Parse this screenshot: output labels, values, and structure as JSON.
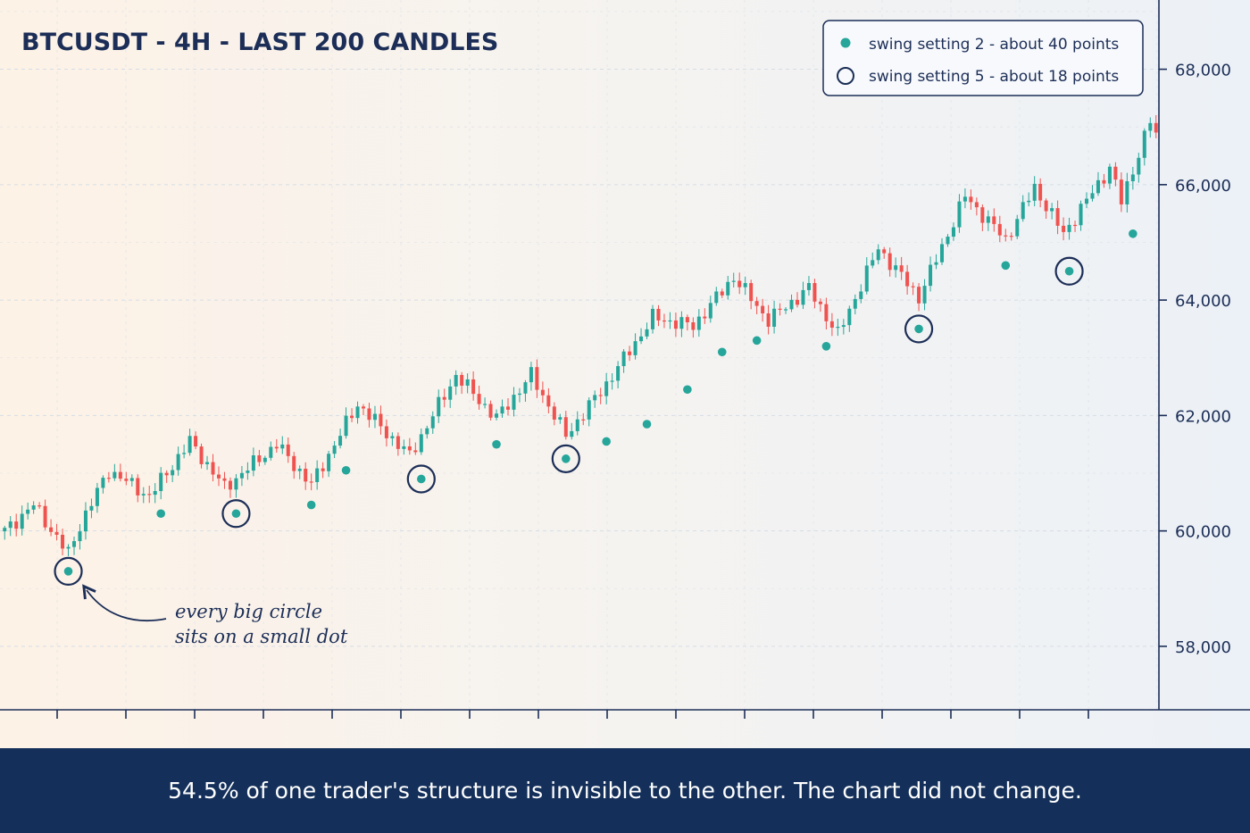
{
  "caption": "54.5% of one trader's structure is invisible to the other. The chart did not change.",
  "annotation": {
    "line1": "every big circle",
    "line2": "sits on a small dot"
  },
  "colors": {
    "up": "#26a69a",
    "down": "#ef5350",
    "navy": "#1c2e57",
    "footer_bg": "#14305a",
    "grid": "#d5dde6"
  },
  "chart_data": {
    "type": "candlestick",
    "title": "BTCUSDT - 4H - LAST 200 CANDLES",
    "xlabel": "",
    "ylabel": "",
    "ylim": [
      56900,
      69200
    ],
    "y_ticks": [
      58000,
      60000,
      62000,
      64000,
      66000,
      68000
    ],
    "y_tick_labels": [
      "58,000",
      "60,000",
      "62,000",
      "64,000",
      "66,000",
      "68,000"
    ],
    "grid": true,
    "legend_position": "top-right",
    "candle_count": 200,
    "close_anchors": [
      [
        0,
        60000
      ],
      [
        5,
        60450
      ],
      [
        11,
        59600
      ],
      [
        13,
        60100
      ],
      [
        18,
        61050
      ],
      [
        25,
        60600
      ],
      [
        32,
        61550
      ],
      [
        38,
        60750
      ],
      [
        47,
        61500
      ],
      [
        53,
        60800
      ],
      [
        61,
        62200
      ],
      [
        70,
        61300
      ],
      [
        78,
        62700
      ],
      [
        85,
        61950
      ],
      [
        91,
        62700
      ],
      [
        97,
        61650
      ],
      [
        104,
        62550
      ],
      [
        112,
        63700
      ],
      [
        119,
        63550
      ],
      [
        126,
        64400
      ],
      [
        132,
        63650
      ],
      [
        139,
        64200
      ],
      [
        144,
        63400
      ],
      [
        151,
        64900
      ],
      [
        158,
        64050
      ],
      [
        166,
        65800
      ],
      [
        173,
        65050
      ],
      [
        178,
        65950
      ],
      [
        183,
        65150
      ],
      [
        191,
        66300
      ],
      [
        193,
        65700
      ],
      [
        198,
        67100
      ],
      [
        200,
        66600
      ]
    ],
    "series": [
      {
        "name": "swing setting 2 - about 40 points",
        "style": "small teal dot",
        "points": [
          {
            "candle": 11,
            "price": 59300
          },
          {
            "candle": 27,
            "price": 60300
          },
          {
            "candle": 40,
            "price": 60300
          },
          {
            "candle": 53,
            "price": 60450
          },
          {
            "candle": 59,
            "price": 61050
          },
          {
            "candle": 72,
            "price": 60900
          },
          {
            "candle": 85,
            "price": 61500
          },
          {
            "candle": 97,
            "price": 61250
          },
          {
            "candle": 104,
            "price": 61550
          },
          {
            "candle": 111,
            "price": 61850
          },
          {
            "candle": 118,
            "price": 62450
          },
          {
            "candle": 124,
            "price": 63100
          },
          {
            "candle": 130,
            "price": 63300
          },
          {
            "candle": 142,
            "price": 63200
          },
          {
            "candle": 158,
            "price": 63500
          },
          {
            "candle": 173,
            "price": 64600
          },
          {
            "candle": 184,
            "price": 64500
          },
          {
            "candle": 195,
            "price": 65150
          }
        ]
      },
      {
        "name": "swing setting 5 - about 18 points",
        "style": "large navy ring",
        "points": [
          {
            "candle": 11,
            "price": 59300
          },
          {
            "candle": 40,
            "price": 60300
          },
          {
            "candle": 72,
            "price": 60900
          },
          {
            "candle": 97,
            "price": 61250
          },
          {
            "candle": 158,
            "price": 63500
          },
          {
            "candle": 184,
            "price": 64500
          }
        ]
      }
    ]
  }
}
